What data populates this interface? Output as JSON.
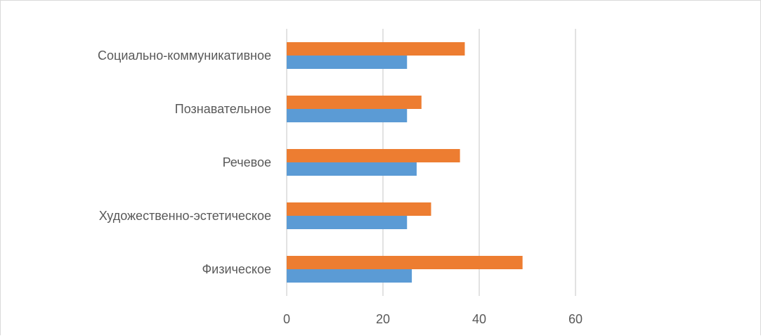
{
  "chart_data": {
    "type": "bar",
    "orientation": "horizontal",
    "categories": [
      "Физическое",
      "Художественно-эстетическое",
      "Речевое",
      "Познавательное",
      "Социально-коммуникативное"
    ],
    "series": [
      {
        "color": "#5b9bd5",
        "values": [
          26,
          25,
          27,
          25,
          25
        ]
      },
      {
        "color": "#ed7d31",
        "values": [
          49,
          30,
          36,
          28,
          37
        ]
      }
    ],
    "xlim": [
      0,
      60
    ],
    "xticks": [
      "0",
      "20",
      "40",
      "60"
    ],
    "grid": true,
    "legend": "none"
  }
}
